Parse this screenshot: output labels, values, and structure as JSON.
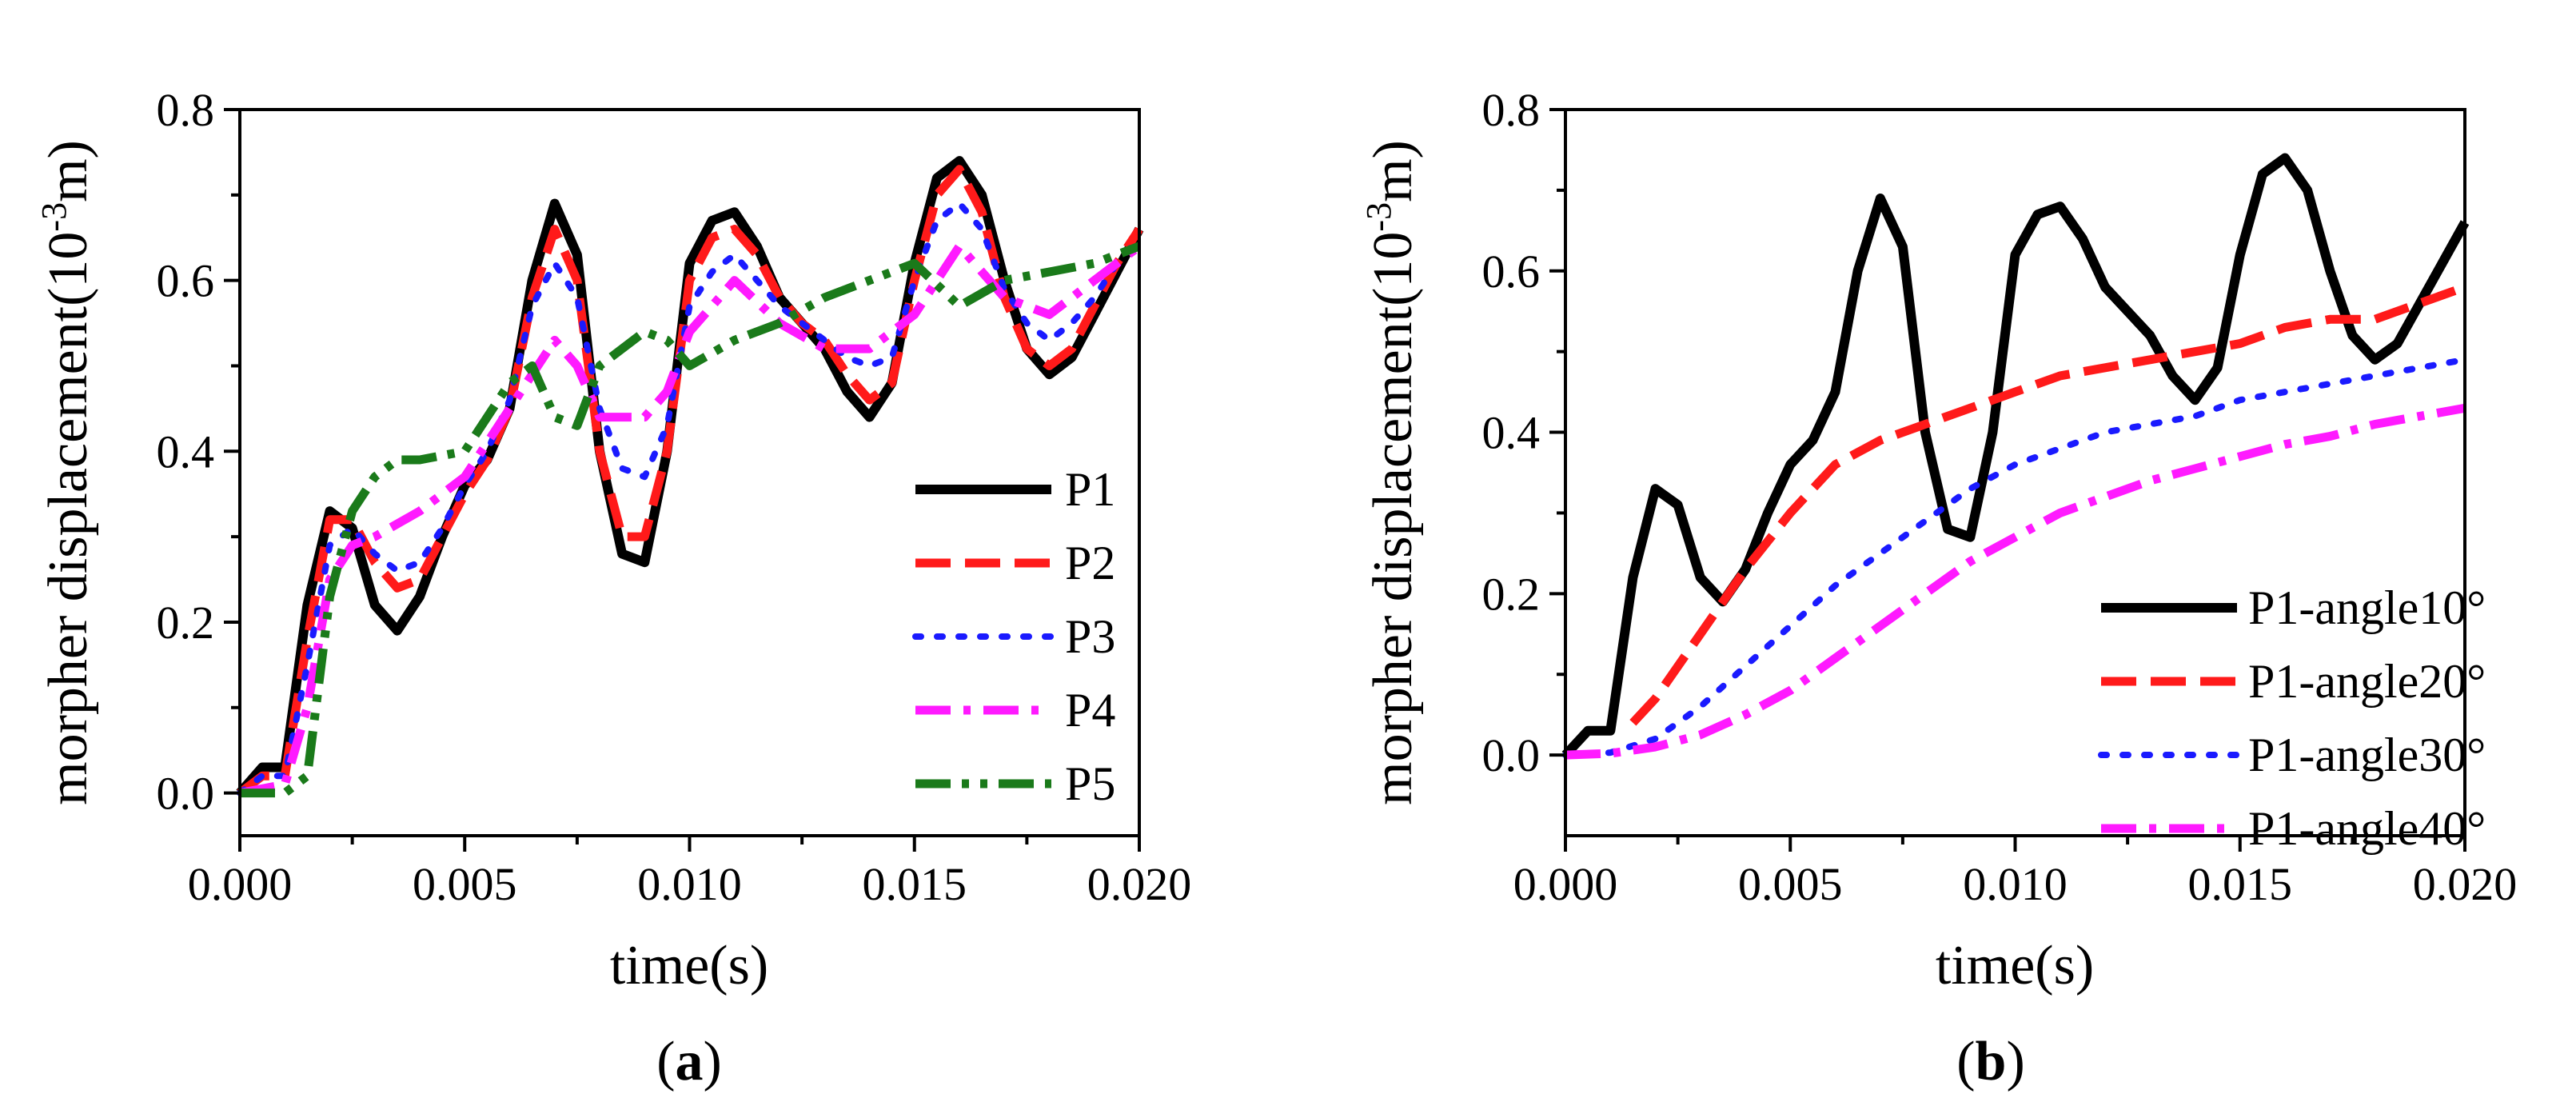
{
  "chart_data": [
    {
      "type": "line",
      "panel_label": "a",
      "xlabel": "time(s)",
      "ylabel": {
        "base": "morpher displacement(10",
        "sup": "-3",
        "unit": "m)"
      },
      "xlim": [
        0.0,
        0.02
      ],
      "ylim": [
        -0.05,
        0.8
      ],
      "xticks": [
        "0.000",
        "0.005",
        "0.010",
        "0.015",
        "0.020"
      ],
      "yticks": [
        "0.0",
        "0.2",
        "0.4",
        "0.6",
        "0.8"
      ],
      "legend_position": "bottom-right",
      "series": [
        {
          "name": "P1",
          "color": "#000000",
          "style": "solid",
          "x": [
            0,
            0.0005,
            0.001,
            0.0015,
            0.002,
            0.0025,
            0.003,
            0.0035,
            0.004,
            0.0045,
            0.005,
            0.0055,
            0.006,
            0.0065,
            0.007,
            0.0075,
            0.008,
            0.0085,
            0.009,
            0.0095,
            0.01,
            0.0105,
            0.011,
            0.0115,
            0.012,
            0.0125,
            0.013,
            0.0135,
            0.014,
            0.0145,
            0.015,
            0.0155,
            0.016,
            0.0165,
            0.017,
            0.0175,
            0.018,
            0.0185,
            0.019,
            0.0195,
            0.02
          ],
          "y": [
            0,
            0.03,
            0.03,
            0.22,
            0.33,
            0.31,
            0.22,
            0.19,
            0.23,
            0.3,
            0.36,
            0.39,
            0.45,
            0.6,
            0.69,
            0.63,
            0.4,
            0.28,
            0.27,
            0.4,
            0.62,
            0.67,
            0.68,
            0.64,
            0.58,
            0.55,
            0.52,
            0.47,
            0.44,
            0.48,
            0.62,
            0.72,
            0.74,
            0.7,
            0.6,
            0.52,
            0.49,
            0.51,
            0.56,
            0.61,
            0.66
          ]
        },
        {
          "name": "P2",
          "color": "#ff1a1a",
          "style": "dashed",
          "x": [
            0,
            0.0005,
            0.001,
            0.0015,
            0.002,
            0.0025,
            0.003,
            0.0035,
            0.004,
            0.0045,
            0.005,
            0.0055,
            0.006,
            0.0065,
            0.007,
            0.0075,
            0.008,
            0.0085,
            0.009,
            0.0095,
            0.01,
            0.0105,
            0.011,
            0.0115,
            0.012,
            0.0125,
            0.013,
            0.0135,
            0.014,
            0.0145,
            0.015,
            0.0155,
            0.016,
            0.0165,
            0.017,
            0.0175,
            0.018,
            0.0185,
            0.019,
            0.0195,
            0.02
          ],
          "y": [
            0,
            0.02,
            0.02,
            0.18,
            0.32,
            0.32,
            0.27,
            0.24,
            0.25,
            0.3,
            0.35,
            0.39,
            0.45,
            0.58,
            0.66,
            0.6,
            0.4,
            0.3,
            0.3,
            0.4,
            0.6,
            0.65,
            0.66,
            0.63,
            0.58,
            0.55,
            0.53,
            0.49,
            0.46,
            0.48,
            0.6,
            0.7,
            0.73,
            0.68,
            0.58,
            0.52,
            0.5,
            0.52,
            0.57,
            0.62,
            0.66
          ]
        },
        {
          "name": "P3",
          "color": "#1a1aff",
          "style": "dotted",
          "x": [
            0,
            0.0005,
            0.001,
            0.0015,
            0.002,
            0.0025,
            0.003,
            0.0035,
            0.004,
            0.0045,
            0.005,
            0.0055,
            0.006,
            0.0065,
            0.007,
            0.0075,
            0.008,
            0.0085,
            0.009,
            0.0095,
            0.01,
            0.0105,
            0.011,
            0.0115,
            0.012,
            0.0125,
            0.013,
            0.0135,
            0.014,
            0.0145,
            0.015,
            0.0155,
            0.016,
            0.0165,
            0.017,
            0.0175,
            0.018,
            0.0185,
            0.019,
            0.0195,
            0.02
          ],
          "y": [
            0,
            0.02,
            0.02,
            0.15,
            0.29,
            0.31,
            0.28,
            0.26,
            0.27,
            0.31,
            0.36,
            0.4,
            0.46,
            0.57,
            0.62,
            0.58,
            0.45,
            0.38,
            0.37,
            0.43,
            0.57,
            0.61,
            0.63,
            0.6,
            0.57,
            0.55,
            0.53,
            0.51,
            0.5,
            0.51,
            0.6,
            0.67,
            0.69,
            0.66,
            0.59,
            0.55,
            0.53,
            0.55,
            0.58,
            0.62,
            0.65
          ]
        },
        {
          "name": "P4",
          "color": "#ff1aff",
          "style": "dashdot",
          "x": [
            0,
            0.001,
            0.0015,
            0.002,
            0.0025,
            0.003,
            0.004,
            0.005,
            0.006,
            0.007,
            0.0075,
            0.008,
            0.009,
            0.0095,
            0.01,
            0.011,
            0.012,
            0.013,
            0.014,
            0.015,
            0.016,
            0.017,
            0.018,
            0.019,
            0.02
          ],
          "y": [
            0,
            0.01,
            0.1,
            0.25,
            0.29,
            0.3,
            0.33,
            0.37,
            0.45,
            0.53,
            0.5,
            0.44,
            0.44,
            0.47,
            0.54,
            0.6,
            0.55,
            0.52,
            0.52,
            0.56,
            0.64,
            0.58,
            0.56,
            0.6,
            0.64
          ]
        },
        {
          "name": "P5",
          "color": "#1a7a1a",
          "style": "dashdotdot",
          "x": [
            0,
            0.001,
            0.0015,
            0.002,
            0.0025,
            0.003,
            0.0035,
            0.004,
            0.005,
            0.006,
            0.0065,
            0.007,
            0.0075,
            0.008,
            0.009,
            0.0095,
            0.01,
            0.011,
            0.012,
            0.013,
            0.014,
            0.015,
            0.016,
            0.017,
            0.018,
            0.019,
            0.02
          ],
          "y": [
            0,
            0.0,
            0.02,
            0.23,
            0.33,
            0.37,
            0.39,
            0.39,
            0.4,
            0.48,
            0.5,
            0.44,
            0.43,
            0.5,
            0.54,
            0.53,
            0.5,
            0.53,
            0.55,
            0.58,
            0.6,
            0.62,
            0.57,
            0.6,
            0.61,
            0.62,
            0.64
          ]
        }
      ]
    },
    {
      "type": "line",
      "panel_label": "b",
      "xlabel": "time(s)",
      "ylabel": {
        "base": "morpher displacement(10",
        "sup": "-3",
        "unit": "m)"
      },
      "xlim": [
        0.0,
        0.02
      ],
      "ylim": [
        -0.1,
        0.8
      ],
      "xticks": [
        "0.000",
        "0.005",
        "0.010",
        "0.015",
        "0.020"
      ],
      "yticks": [
        "0.0",
        "0.2",
        "0.4",
        "0.6",
        "0.8"
      ],
      "legend_position": "bottom-right",
      "series": [
        {
          "name": "P1-angle10°",
          "color": "#000000",
          "style": "solid",
          "x": [
            0,
            0.0005,
            0.001,
            0.0015,
            0.002,
            0.0025,
            0.003,
            0.0035,
            0.004,
            0.0045,
            0.005,
            0.0055,
            0.006,
            0.0065,
            0.007,
            0.0075,
            0.008,
            0.0085,
            0.009,
            0.0095,
            0.01,
            0.0105,
            0.011,
            0.0115,
            0.012,
            0.0125,
            0.013,
            0.0135,
            0.014,
            0.0145,
            0.015,
            0.0155,
            0.016,
            0.0165,
            0.017,
            0.0175,
            0.018,
            0.0185,
            0.019,
            0.0195,
            0.02
          ],
          "y": [
            0,
            0.03,
            0.03,
            0.22,
            0.33,
            0.31,
            0.22,
            0.19,
            0.23,
            0.3,
            0.36,
            0.39,
            0.45,
            0.6,
            0.69,
            0.63,
            0.4,
            0.28,
            0.27,
            0.4,
            0.62,
            0.67,
            0.68,
            0.64,
            0.58,
            0.55,
            0.52,
            0.47,
            0.44,
            0.48,
            0.62,
            0.72,
            0.74,
            0.7,
            0.6,
            0.52,
            0.49,
            0.51,
            0.56,
            0.61,
            0.66
          ]
        },
        {
          "name": "P1-angle20°",
          "color": "#ff1a1a",
          "style": "dashed",
          "x": [
            0.0015,
            0.002,
            0.003,
            0.004,
            0.005,
            0.006,
            0.007,
            0.008,
            0.009,
            0.01,
            0.011,
            0.012,
            0.013,
            0.014,
            0.015,
            0.016,
            0.017,
            0.018,
            0.019,
            0.02
          ],
          "y": [
            0.04,
            0.07,
            0.15,
            0.23,
            0.3,
            0.36,
            0.39,
            0.41,
            0.43,
            0.45,
            0.47,
            0.48,
            0.49,
            0.5,
            0.51,
            0.53,
            0.54,
            0.54,
            0.56,
            0.58
          ]
        },
        {
          "name": "P1-angle30°",
          "color": "#1a1aff",
          "style": "dotted",
          "x": [
            0,
            0.001,
            0.002,
            0.003,
            0.004,
            0.005,
            0.006,
            0.007,
            0.008,
            0.009,
            0.01,
            0.011,
            0.012,
            0.013,
            0.014,
            0.015,
            0.016,
            0.017,
            0.018,
            0.019,
            0.02
          ],
          "y": [
            0,
            0.003,
            0.02,
            0.06,
            0.11,
            0.16,
            0.21,
            0.25,
            0.29,
            0.33,
            0.36,
            0.38,
            0.4,
            0.41,
            0.42,
            0.44,
            0.45,
            0.46,
            0.47,
            0.48,
            0.49
          ]
        },
        {
          "name": "P1-angle40°",
          "color": "#ff1aff",
          "style": "dashdot",
          "x": [
            0,
            0.001,
            0.002,
            0.003,
            0.004,
            0.005,
            0.006,
            0.007,
            0.008,
            0.009,
            0.01,
            0.011,
            0.012,
            0.013,
            0.014,
            0.015,
            0.016,
            0.017,
            0.018,
            0.019,
            0.02
          ],
          "y": [
            0,
            0.002,
            0.01,
            0.025,
            0.05,
            0.08,
            0.12,
            0.16,
            0.2,
            0.24,
            0.27,
            0.3,
            0.32,
            0.34,
            0.355,
            0.37,
            0.385,
            0.395,
            0.41,
            0.42,
            0.43
          ]
        }
      ]
    }
  ]
}
